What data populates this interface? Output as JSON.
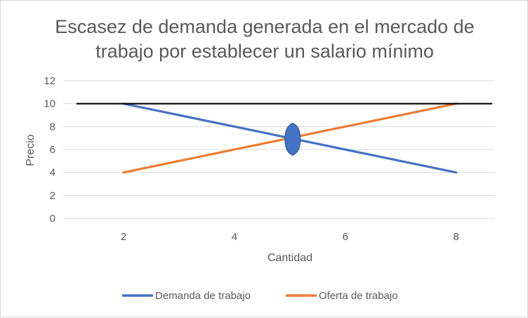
{
  "chart_data": {
    "type": "line",
    "title_lines": [
      "Escasez de demanda generada en el mercado de",
      "trabajo por establecer un salario mínimo"
    ],
    "xlabel": "Cantidad",
    "ylabel": "Precio",
    "xlim": [
      1,
      8.7
    ],
    "ylim": [
      0,
      12
    ],
    "x_ticks": [
      2,
      4,
      6,
      8
    ],
    "y_ticks": [
      0,
      2,
      4,
      6,
      8,
      10,
      12
    ],
    "grid": "horizontal",
    "legend_position": "bottom",
    "series": [
      {
        "name": "Demanda de trabajo",
        "color": "#4472c4",
        "x": [
          2,
          8
        ],
        "values": [
          10,
          4
        ]
      },
      {
        "name": "Oferta de trabajo",
        "color": "#ed7d31",
        "x": [
          2,
          8
        ],
        "values": [
          4,
          10
        ]
      }
    ],
    "minimum_wage_line": {
      "y": 10,
      "x_start": 1.15,
      "x_end": 8.65,
      "color": "#000000"
    },
    "equilibrium_marker": {
      "x": 5.05,
      "y": 6.9,
      "color": "#4472c4"
    }
  }
}
